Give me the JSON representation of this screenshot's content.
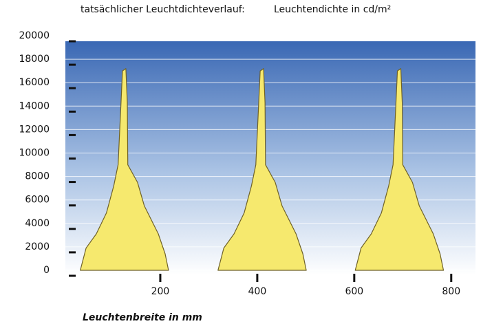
{
  "chart_data": {
    "type": "area",
    "title": "tatsächlicher Leuchtdichteverlauf:",
    "y_label": "Leuchtendichte in cd/m²",
    "x_label": "Leuchtenbreite in mm",
    "x": [
      35,
      47,
      68,
      89,
      104,
      113,
      119,
      122,
      129,
      132,
      133,
      153,
      167,
      196,
      210,
      217,
      null,
      319,
      331,
      352,
      373,
      388,
      397,
      403,
      406,
      413,
      416,
      417,
      437,
      451,
      480,
      494,
      501,
      null,
      602,
      614,
      635,
      656,
      671,
      680,
      686,
      689,
      696,
      699,
      700,
      720,
      734,
      763,
      777,
      784
    ],
    "series": [
      {
        "name": null,
        "color": "#f6e96e",
        "values": [
          0,
          1900,
          3100,
          4900,
          7200,
          9000,
          14300,
          17000,
          17200,
          14300,
          9000,
          7500,
          5500,
          3100,
          1400,
          0,
          null,
          0,
          1900,
          3100,
          4900,
          7200,
          9000,
          14300,
          17000,
          17200,
          14300,
          9000,
          7500,
          5500,
          3100,
          1400,
          0,
          null,
          0,
          1900,
          3100,
          4900,
          7200,
          9000,
          14300,
          17000,
          17200,
          14300,
          9000,
          7500,
          5500,
          3100,
          1400,
          0
        ]
      }
    ],
    "xlim": [
      0,
      850
    ],
    "xticks": [
      200,
      400,
      600,
      800
    ],
    "ylim": [
      0,
      20000
    ],
    "yticks": [
      0,
      2000,
      4000,
      6000,
      8000,
      10000,
      12000,
      14000,
      16000,
      18000,
      20000
    ],
    "grid": true
  }
}
